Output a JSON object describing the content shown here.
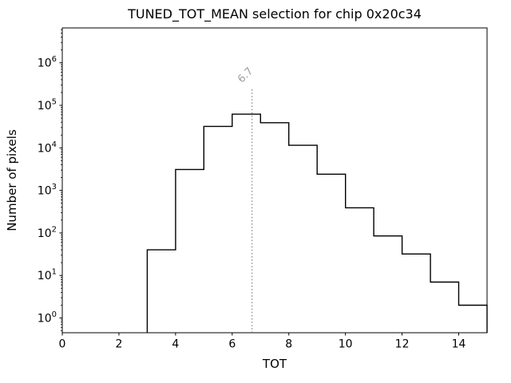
{
  "chart_data": {
    "type": "bar",
    "subtype": "step-histogram",
    "title": "TUNED_TOT_MEAN selection for chip 0x20c34",
    "xlabel": "TOT",
    "ylabel": "Number of pixels",
    "yscale": "log",
    "xlim": [
      0,
      15
    ],
    "ylim": [
      0.45,
      6600000
    ],
    "x_ticks": [
      0,
      2,
      4,
      6,
      8,
      10,
      12,
      14
    ],
    "y_tick_exponents": [
      0,
      1,
      2,
      3,
      4,
      5,
      6
    ],
    "y_tick_base": "10",
    "grid": false,
    "legend": false,
    "bin_edges": [
      3,
      4,
      5,
      6,
      7,
      8,
      9,
      10,
      11,
      12,
      13,
      14,
      15
    ],
    "counts": [
      40,
      3100,
      32000,
      62000,
      39000,
      11500,
      2400,
      390,
      85,
      32,
      7,
      2
    ],
    "line_color": "#000000",
    "annotation": {
      "label": "6.7",
      "x": 6.7,
      "label_color": "#a0a0a0",
      "line_color": "#8c8c8c",
      "line_style": "dotted",
      "label_rotation_deg": 45
    }
  }
}
